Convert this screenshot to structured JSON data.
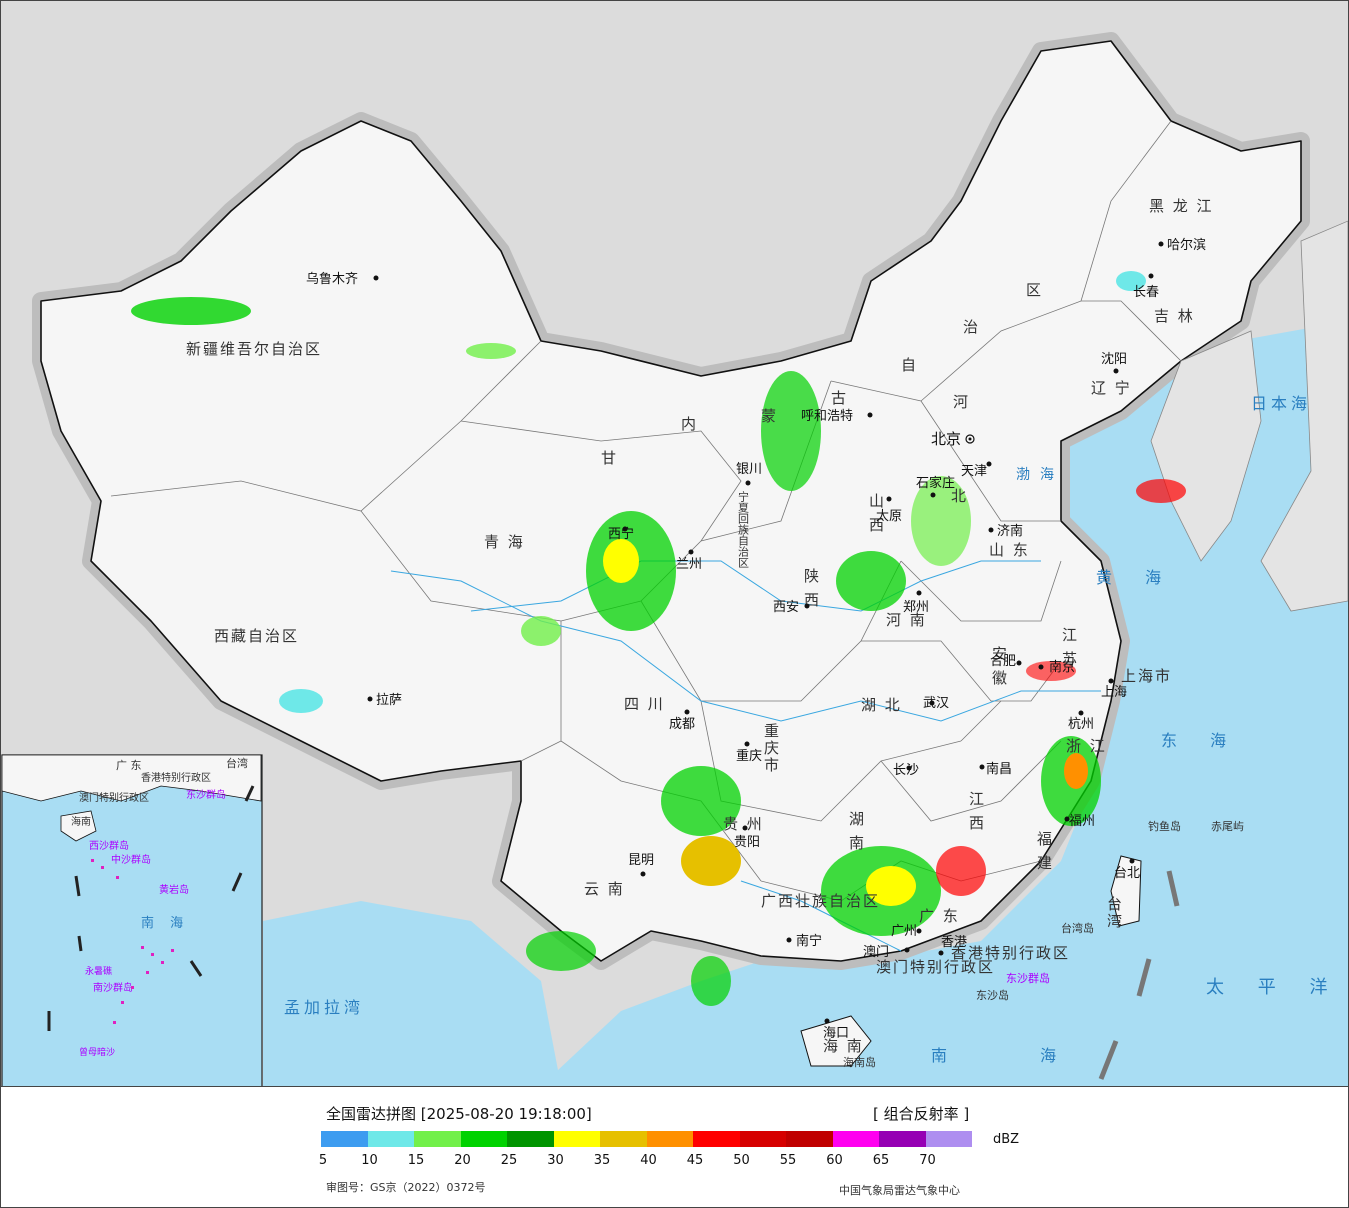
{
  "map": {
    "provinces": [
      {
        "id": "xinjiang",
        "label": "新疆维吾尔自治区"
      },
      {
        "id": "xizang",
        "label": "西藏自治区"
      },
      {
        "id": "qinghai",
        "label": "青 海"
      },
      {
        "id": "gansu",
        "label": "甘"
      },
      {
        "id": "sichuan",
        "label": "四 川"
      },
      {
        "id": "yunnan",
        "label": "云 南"
      },
      {
        "id": "neimenggu-1",
        "label": "内"
      },
      {
        "id": "neimenggu-2",
        "label": "蒙"
      },
      {
        "id": "neimenggu-3",
        "label": "古"
      },
      {
        "id": "neimenggu-4",
        "label": "自"
      },
      {
        "id": "neimenggu-5",
        "label": "治"
      },
      {
        "id": "neimenggu-6",
        "label": "区"
      },
      {
        "id": "heilongjiang",
        "label": "黑 龙 江"
      },
      {
        "id": "jilin",
        "label": "吉 林"
      },
      {
        "id": "liaoning",
        "label": "辽 宁"
      },
      {
        "id": "hebei-1",
        "label": "河"
      },
      {
        "id": "hebei-2",
        "label": "北"
      },
      {
        "id": "shanxi",
        "label": "山 西"
      },
      {
        "id": "shaanxi",
        "label": "陕 西"
      },
      {
        "id": "henan",
        "label": "河 南"
      },
      {
        "id": "shandong",
        "label": "山 东"
      },
      {
        "id": "jiangsu",
        "label": "江 苏"
      },
      {
        "id": "anhui",
        "label": "安 徽"
      },
      {
        "id": "hubei",
        "label": "湖 北"
      },
      {
        "id": "hunan",
        "label": "湖 南"
      },
      {
        "id": "jiangxi",
        "label": "江 西"
      },
      {
        "id": "zhejiang",
        "label": "浙 江"
      },
      {
        "id": "fujian",
        "label": "福 建"
      },
      {
        "id": "guangdong",
        "label": "广 东"
      },
      {
        "id": "guangxi",
        "label": "广西壮族自治区"
      },
      {
        "id": "guizhou",
        "label": "贵 州"
      },
      {
        "id": "chongqing",
        "label": "重庆市"
      },
      {
        "id": "ningxia",
        "label": "宁夏回族自治区"
      },
      {
        "id": "hainan",
        "label": "海 南"
      },
      {
        "id": "taiwan",
        "label": "台湾"
      },
      {
        "id": "shanghai",
        "label": "上海市"
      },
      {
        "id": "hongkong",
        "label": "香港特别行政区"
      },
      {
        "id": "macau",
        "label": "澳门特别行政区"
      }
    ],
    "cities": [
      {
        "id": "urumqi",
        "label": "乌鲁木齐"
      },
      {
        "id": "lhasa",
        "label": "拉萨"
      },
      {
        "id": "xining",
        "label": "西宁"
      },
      {
        "id": "lanzhou",
        "label": "兰州"
      },
      {
        "id": "yinchuan",
        "label": "银川"
      },
      {
        "id": "hohhot",
        "label": "呼和浩特"
      },
      {
        "id": "beijing",
        "label": "北京"
      },
      {
        "id": "tianjin",
        "label": "天津"
      },
      {
        "id": "shijiazhuang",
        "label": "石家庄"
      },
      {
        "id": "taiyuan",
        "label": "太原"
      },
      {
        "id": "jinan",
        "label": "济南"
      },
      {
        "id": "zhengzhou",
        "label": "郑州"
      },
      {
        "id": "xian",
        "label": "西安"
      },
      {
        "id": "chengdu",
        "label": "成都"
      },
      {
        "id": "chongqing-city",
        "label": "重庆"
      },
      {
        "id": "guiyang",
        "label": "贵阳"
      },
      {
        "id": "kunming",
        "label": "昆明"
      },
      {
        "id": "nanning",
        "label": "南宁"
      },
      {
        "id": "guangzhou",
        "label": "广州"
      },
      {
        "id": "macau-city",
        "label": "澳门"
      },
      {
        "id": "hongkong-city",
        "label": "香港"
      },
      {
        "id": "haikou",
        "label": "海口"
      },
      {
        "id": "changsha",
        "label": "长沙"
      },
      {
        "id": "wuhan",
        "label": "武汉"
      },
      {
        "id": "nanchang",
        "label": "南昌"
      },
      {
        "id": "hefei",
        "label": "合肥"
      },
      {
        "id": "nanjing",
        "label": "南京"
      },
      {
        "id": "shanghai-city",
        "label": "上海"
      },
      {
        "id": "hangzhou",
        "label": "杭州"
      },
      {
        "id": "fuzhou",
        "label": "福州"
      },
      {
        "id": "taibei",
        "label": "台北"
      },
      {
        "id": "shenyang",
        "label": "沈阳"
      },
      {
        "id": "changchun",
        "label": "长春"
      },
      {
        "id": "harbin",
        "label": "哈尔滨"
      }
    ],
    "seas": [
      {
        "id": "japan-sea",
        "label": "日本海"
      },
      {
        "id": "bohai",
        "label": "渤海"
      },
      {
        "id": "yellow-sea",
        "label": "黄 海"
      },
      {
        "id": "east-sea",
        "label": "东 海"
      },
      {
        "id": "pacific",
        "label": "太 平 洋"
      },
      {
        "id": "south-sea",
        "label": "南 海"
      },
      {
        "id": "bengal",
        "label": "孟加拉湾"
      }
    ],
    "islands": [
      {
        "id": "diaoyu",
        "label": "钓鱼岛"
      },
      {
        "id": "chiwei",
        "label": "赤尾屿"
      },
      {
        "id": "taiwan-island",
        "label": "台湾岛"
      },
      {
        "id": "dongsha",
        "label": "东沙群岛"
      },
      {
        "id": "dongsha-dao",
        "label": "东沙岛"
      },
      {
        "id": "hainan-island",
        "label": "海南岛"
      }
    ],
    "inset": {
      "labels": [
        {
          "id": "inset-guangdong",
          "label": "广 东"
        },
        {
          "id": "inset-taiwan",
          "label": "台湾"
        },
        {
          "id": "inset-hk",
          "label": "香港特别行政区"
        },
        {
          "id": "inset-macau",
          "label": "澳门特别行政区"
        },
        {
          "id": "inset-dongsha",
          "label": "东沙群岛"
        },
        {
          "id": "inset-hainan",
          "label": "海南"
        },
        {
          "id": "inset-xisha",
          "label": "西沙群岛"
        },
        {
          "id": "inset-zhongsha",
          "label": "中沙群岛"
        },
        {
          "id": "inset-huangyan",
          "label": "黄岩岛"
        },
        {
          "id": "inset-nansha",
          "label": "南沙群岛"
        },
        {
          "id": "inset-yongshu",
          "label": "永暑礁"
        },
        {
          "id": "inset-zengmu",
          "label": "曾母暗沙"
        },
        {
          "id": "inset-southsea",
          "label": "南 海"
        }
      ]
    }
  },
  "legend": {
    "title": "全国雷达拼图 [2025-08-20 19:18:00]",
    "product": "[ 组合反射率 ]",
    "unit": "dBZ",
    "colors": [
      "#3d9cf0",
      "#6ee8e8",
      "#72f04a",
      "#00d200",
      "#009400",
      "#ffff00",
      "#e6c000",
      "#ff9000",
      "#ff0000",
      "#d60000",
      "#c00000",
      "#ff00f0",
      "#9600b4",
      "#ae8ef0"
    ],
    "ticks": [
      "5",
      "10",
      "15",
      "20",
      "25",
      "30",
      "35",
      "40",
      "45",
      "50",
      "55",
      "60",
      "65",
      "70"
    ],
    "approval": "审图号：GS京（2022）0372号",
    "source": "中国气象局雷达气象中心"
  }
}
